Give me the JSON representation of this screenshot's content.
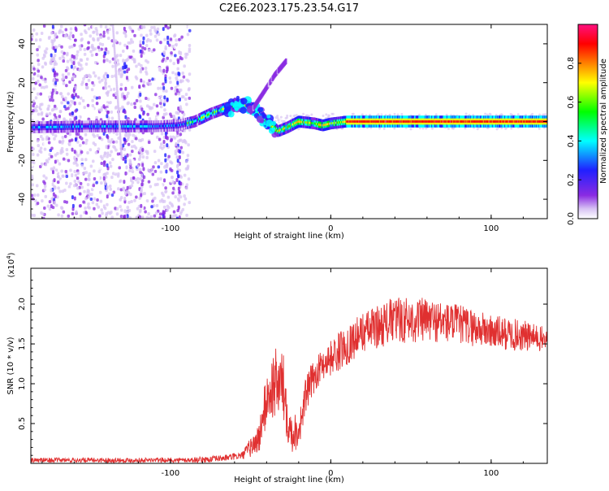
{
  "title": "C2E6.2023.175.23.54.G17",
  "chart_data": [
    {
      "type": "heatmap",
      "xlabel": "Height of straight line (km)",
      "ylabel": "Frequency (Hz)",
      "xlim": [
        -187,
        135
      ],
      "ylim": [
        -50,
        50
      ],
      "x_ticks": [
        -100,
        0,
        100
      ],
      "y_ticks": [
        -40,
        -20,
        0,
        20,
        40
      ],
      "colorbar": {
        "label": "Normalized spectral amplitude",
        "range": [
          0,
          1
        ],
        "ticks": [
          "0.0",
          "0.2",
          "0.4",
          "0.6",
          "0.8"
        ],
        "colors": [
          "#ffffff",
          "#d8c4f4",
          "#8a2be2",
          "#2020ff",
          "#00ffff",
          "#00ff00",
          "#ffff00",
          "#ff8000",
          "#ff0000",
          "#ff1080"
        ]
      },
      "main_trace": [
        {
          "x": -187,
          "y": -3
        },
        {
          "x": -150,
          "y": -2.5
        },
        {
          "x": -110,
          "y": -2.5
        },
        {
          "x": -95,
          "y": -2
        },
        {
          "x": -85,
          "y": 0
        },
        {
          "x": -75,
          "y": 4
        },
        {
          "x": -65,
          "y": 7
        },
        {
          "x": -55,
          "y": 9
        },
        {
          "x": -47,
          "y": 6
        },
        {
          "x": -40,
          "y": 0
        },
        {
          "x": -33,
          "y": -5
        },
        {
          "x": -27,
          "y": -3
        },
        {
          "x": -20,
          "y": 0
        },
        {
          "x": -10,
          "y": -1
        },
        {
          "x": -5,
          "y": -2
        },
        {
          "x": 0,
          "y": -1
        },
        {
          "x": 10,
          "y": 0
        },
        {
          "x": 50,
          "y": 0
        },
        {
          "x": 100,
          "y": 0
        },
        {
          "x": 135,
          "y": 0
        }
      ],
      "branch_trace": [
        {
          "x": -50,
          "y": 5
        },
        {
          "x": -42,
          "y": 15
        },
        {
          "x": -35,
          "y": 24
        },
        {
          "x": -28,
          "y": 31
        }
      ]
    },
    {
      "type": "line",
      "xlabel": "Height of straight line (km)",
      "ylabel": "SNR (10 * v/v)",
      "y_multiplier": "(x10",
      "y_multiplier_exp": "4",
      "xlim": [
        -187,
        135
      ],
      "ylim": [
        0,
        2.45
      ],
      "x_ticks": [
        -100,
        0,
        100
      ],
      "y_ticks": [
        0.5,
        1.0,
        1.5,
        2.0
      ],
      "series": [
        {
          "color": "#e03030",
          "envelope": [
            {
              "x": -187,
              "base": 0.04,
              "amp": 0.03
            },
            {
              "x": -90,
              "base": 0.04,
              "amp": 0.03
            },
            {
              "x": -75,
              "base": 0.05,
              "amp": 0.04
            },
            {
              "x": -65,
              "base": 0.07,
              "amp": 0.04
            },
            {
              "x": -55,
              "base": 0.1,
              "amp": 0.05
            },
            {
              "x": -45,
              "base": 0.3,
              "amp": 0.2
            },
            {
              "x": -40,
              "base": 0.8,
              "amp": 0.35
            },
            {
              "x": -35,
              "base": 1.0,
              "amp": 0.45
            },
            {
              "x": -30,
              "base": 1.0,
              "amp": 0.45
            },
            {
              "x": -25,
              "base": 0.4,
              "amp": 0.3
            },
            {
              "x": -20,
              "base": 0.4,
              "amp": 0.2
            },
            {
              "x": -15,
              "base": 0.9,
              "amp": 0.25
            },
            {
              "x": -10,
              "base": 1.1,
              "amp": 0.2
            },
            {
              "x": -5,
              "base": 1.25,
              "amp": 0.2
            },
            {
              "x": 5,
              "base": 1.4,
              "amp": 0.25
            },
            {
              "x": 20,
              "base": 1.65,
              "amp": 0.25
            },
            {
              "x": 40,
              "base": 1.8,
              "amp": 0.3
            },
            {
              "x": 60,
              "base": 1.8,
              "amp": 0.28
            },
            {
              "x": 80,
              "base": 1.75,
              "amp": 0.25
            },
            {
              "x": 100,
              "base": 1.65,
              "amp": 0.22
            },
            {
              "x": 120,
              "base": 1.6,
              "amp": 0.2
            },
            {
              "x": 135,
              "base": 1.55,
              "amp": 0.15
            }
          ]
        }
      ]
    }
  ]
}
